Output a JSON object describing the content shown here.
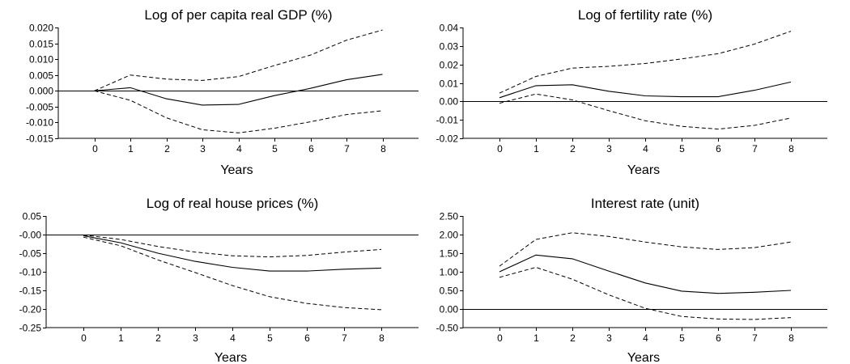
{
  "chart_data": [
    {
      "type": "line",
      "title": "Log of per capita real GDP (%)",
      "xlabel": "Years",
      "ylabel": "",
      "x": [
        0,
        1,
        2,
        3,
        4,
        5,
        6,
        7,
        8
      ],
      "xlim": [
        -1,
        9
      ],
      "ylim": [
        -0.015,
        0.02
      ],
      "yticks": [
        "0.020",
        "0.015",
        "0.010",
        "0.005",
        "0.000",
        "-0.005",
        "-0.010",
        "-0.015"
      ],
      "grid": false,
      "series": [
        {
          "style": "solid",
          "values": [
            0.0,
            0.001,
            -0.0025,
            -0.0045,
            -0.0043,
            -0.0015,
            0.0008,
            0.0035,
            0.0052
          ]
        },
        {
          "style": "dashed",
          "values": [
            0.0,
            0.005,
            0.0037,
            0.0033,
            0.0045,
            0.008,
            0.0113,
            0.016,
            0.0192
          ]
        },
        {
          "style": "dashed",
          "values": [
            0.0,
            -0.003,
            -0.0085,
            -0.0123,
            -0.0133,
            -0.0118,
            -0.0098,
            -0.0075,
            -0.0063
          ]
        }
      ]
    },
    {
      "type": "line",
      "title": "Log of fertility rate (%)",
      "xlabel": "Years",
      "ylabel": "",
      "x": [
        0,
        1,
        2,
        3,
        4,
        5,
        6,
        7,
        8
      ],
      "xlim": [
        -1,
        9
      ],
      "ylim": [
        -0.02,
        0.04
      ],
      "yticks": [
        "0.04",
        "0.03",
        "0.02",
        "0.01",
        "0.00",
        "-0.01",
        "-0.02"
      ],
      "grid": false,
      "series": [
        {
          "style": "solid",
          "values": [
            0.002,
            0.0085,
            0.009,
            0.0055,
            0.003,
            0.0025,
            0.0025,
            0.006,
            0.0105
          ]
        },
        {
          "style": "dashed",
          "values": [
            0.0045,
            0.0135,
            0.018,
            0.019,
            0.0205,
            0.023,
            0.0258,
            0.031,
            0.038
          ]
        },
        {
          "style": "dashed",
          "values": [
            -0.001,
            0.004,
            0.0008,
            -0.005,
            -0.0105,
            -0.0135,
            -0.015,
            -0.013,
            -0.009
          ]
        }
      ]
    },
    {
      "type": "line",
      "title": "Log of real house prices (%)",
      "xlabel": "Years",
      "ylabel": "",
      "x": [
        0,
        1,
        2,
        3,
        4,
        5,
        6,
        7,
        8
      ],
      "xlim": [
        -1,
        9
      ],
      "ylim": [
        -0.25,
        0.05
      ],
      "yticks": [
        "0.05",
        "-0.00",
        "-0.05",
        "-0.10",
        "-0.15",
        "-0.20",
        "-0.25"
      ],
      "grid": false,
      "series": [
        {
          "style": "solid",
          "values": [
            -0.003,
            -0.022,
            -0.05,
            -0.072,
            -0.088,
            -0.098,
            -0.098,
            -0.093,
            -0.09
          ]
        },
        {
          "style": "dashed",
          "values": [
            -0.001,
            -0.013,
            -0.032,
            -0.047,
            -0.057,
            -0.06,
            -0.056,
            -0.047,
            -0.04
          ]
        },
        {
          "style": "dashed",
          "values": [
            -0.007,
            -0.03,
            -0.068,
            -0.102,
            -0.137,
            -0.167,
            -0.185,
            -0.196,
            -0.202
          ]
        }
      ]
    },
    {
      "type": "line",
      "title": "Interest rate (unit)",
      "xlabel": "Years",
      "ylabel": "",
      "x": [
        0,
        1,
        2,
        3,
        4,
        5,
        6,
        7,
        8
      ],
      "xlim": [
        -1,
        9
      ],
      "ylim": [
        -0.5,
        2.5
      ],
      "yticks": [
        "2.50",
        "2.00",
        "1.50",
        "1.00",
        "0.50",
        "0.00",
        "-0.50"
      ],
      "grid": false,
      "series": [
        {
          "style": "solid",
          "values": [
            1.0,
            1.45,
            1.35,
            1.02,
            0.7,
            0.48,
            0.42,
            0.45,
            0.5
          ]
        },
        {
          "style": "dashed",
          "values": [
            1.15,
            1.87,
            2.05,
            1.95,
            1.8,
            1.67,
            1.6,
            1.65,
            1.8
          ]
        },
        {
          "style": "dashed",
          "values": [
            0.85,
            1.12,
            0.8,
            0.38,
            0.02,
            -0.2,
            -0.27,
            -0.28,
            -0.23
          ]
        }
      ]
    }
  ]
}
